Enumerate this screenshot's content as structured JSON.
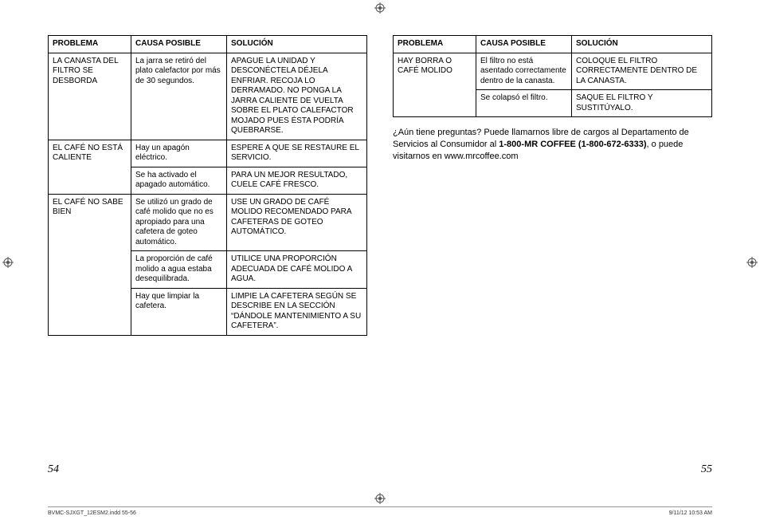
{
  "headers": {
    "problema": "PROBLEMA",
    "causa": "CAUSA POSIBLE",
    "solucion": "SOLUCIÓN"
  },
  "left_table": [
    {
      "problema": "LA CANASTA DEL FILTRO SE DESBORDA",
      "rows": [
        {
          "causa": "La jarra se retiró del plato calefactor por más de 30 segundos.",
          "solucion": "APAGUE LA UNIDAD Y DESCONÉCTELA DÉJELA ENFRIAR. RECOJA LO DERRAMADO. NO PONGA LA JARRA CALIENTE DE VUELTA SOBRE EL PLATO CALEFACTOR MOJADO PUES ÉSTA PODRÍA QUEBRARSE."
        }
      ]
    },
    {
      "problema": "EL CAFÉ NO ESTÁ CALIENTE",
      "rows": [
        {
          "causa": "Hay un apagón eléctrico.",
          "solucion": "ESPERE A QUE SE RESTAURE EL SERVICIO."
        },
        {
          "causa": "Se ha activado el apagado automático.",
          "solucion": "PARA UN MEJOR RESULTADO, CUELE CAFÉ FRESCO."
        }
      ]
    },
    {
      "problema": "EL CAFÉ NO SABE BIEN",
      "rows": [
        {
          "causa": "Se utilizó un grado de café molido que no es apropiado para una cafetera de goteo automático.",
          "solucion": "USE UN GRADO DE CAFÉ MOLIDO RECOMENDADO PARA CAFETERAS DE GOTEO AUTOMÁTICO."
        },
        {
          "causa": "La proporción de café molido a agua estaba desequilibrada.",
          "solucion": "UTILICE UNA PROPORCIÓN ADECUADA DE CAFÉ MOLIDO A AGUA."
        },
        {
          "causa": "Hay que limpiar la cafetera.",
          "solucion": "LIMPIE LA CAFETERA SEGÚN SE DESCRIBE EN LA SECCIÓN “DÁNDOLE MANTENIMIENTO A SU CAFETERA”."
        }
      ]
    }
  ],
  "right_table": [
    {
      "problema": "HAY BORRA O CAFÉ MOLIDO",
      "rows": [
        {
          "causa": "El filtro no está asentado correctamente dentro de la canasta.",
          "solucion": "COLOQUE EL FILTRO CORRECTAMENTE DENTRO DE LA CANASTA."
        },
        {
          "causa": "Se colapsó el filtro.",
          "solucion": "SAQUE EL FILTRO Y SUSTITÚYALO."
        }
      ]
    }
  ],
  "footer_paragraph": {
    "line1": "¿Aún tiene preguntas? Puede llamarnos libre de cargos al Departamento de Servicios al Consumidor al ",
    "phone": "1-800-MR COFFEE (1-800-672-6333)",
    "line2": ", o puede visitarnos en www.mrcoffee.com"
  },
  "page_left_num": "54",
  "page_right_num": "55",
  "imprint_left": "BVMC-SJXGT_12ESM2.indd   55-56",
  "imprint_right": "9/11/12   10:53 AM"
}
